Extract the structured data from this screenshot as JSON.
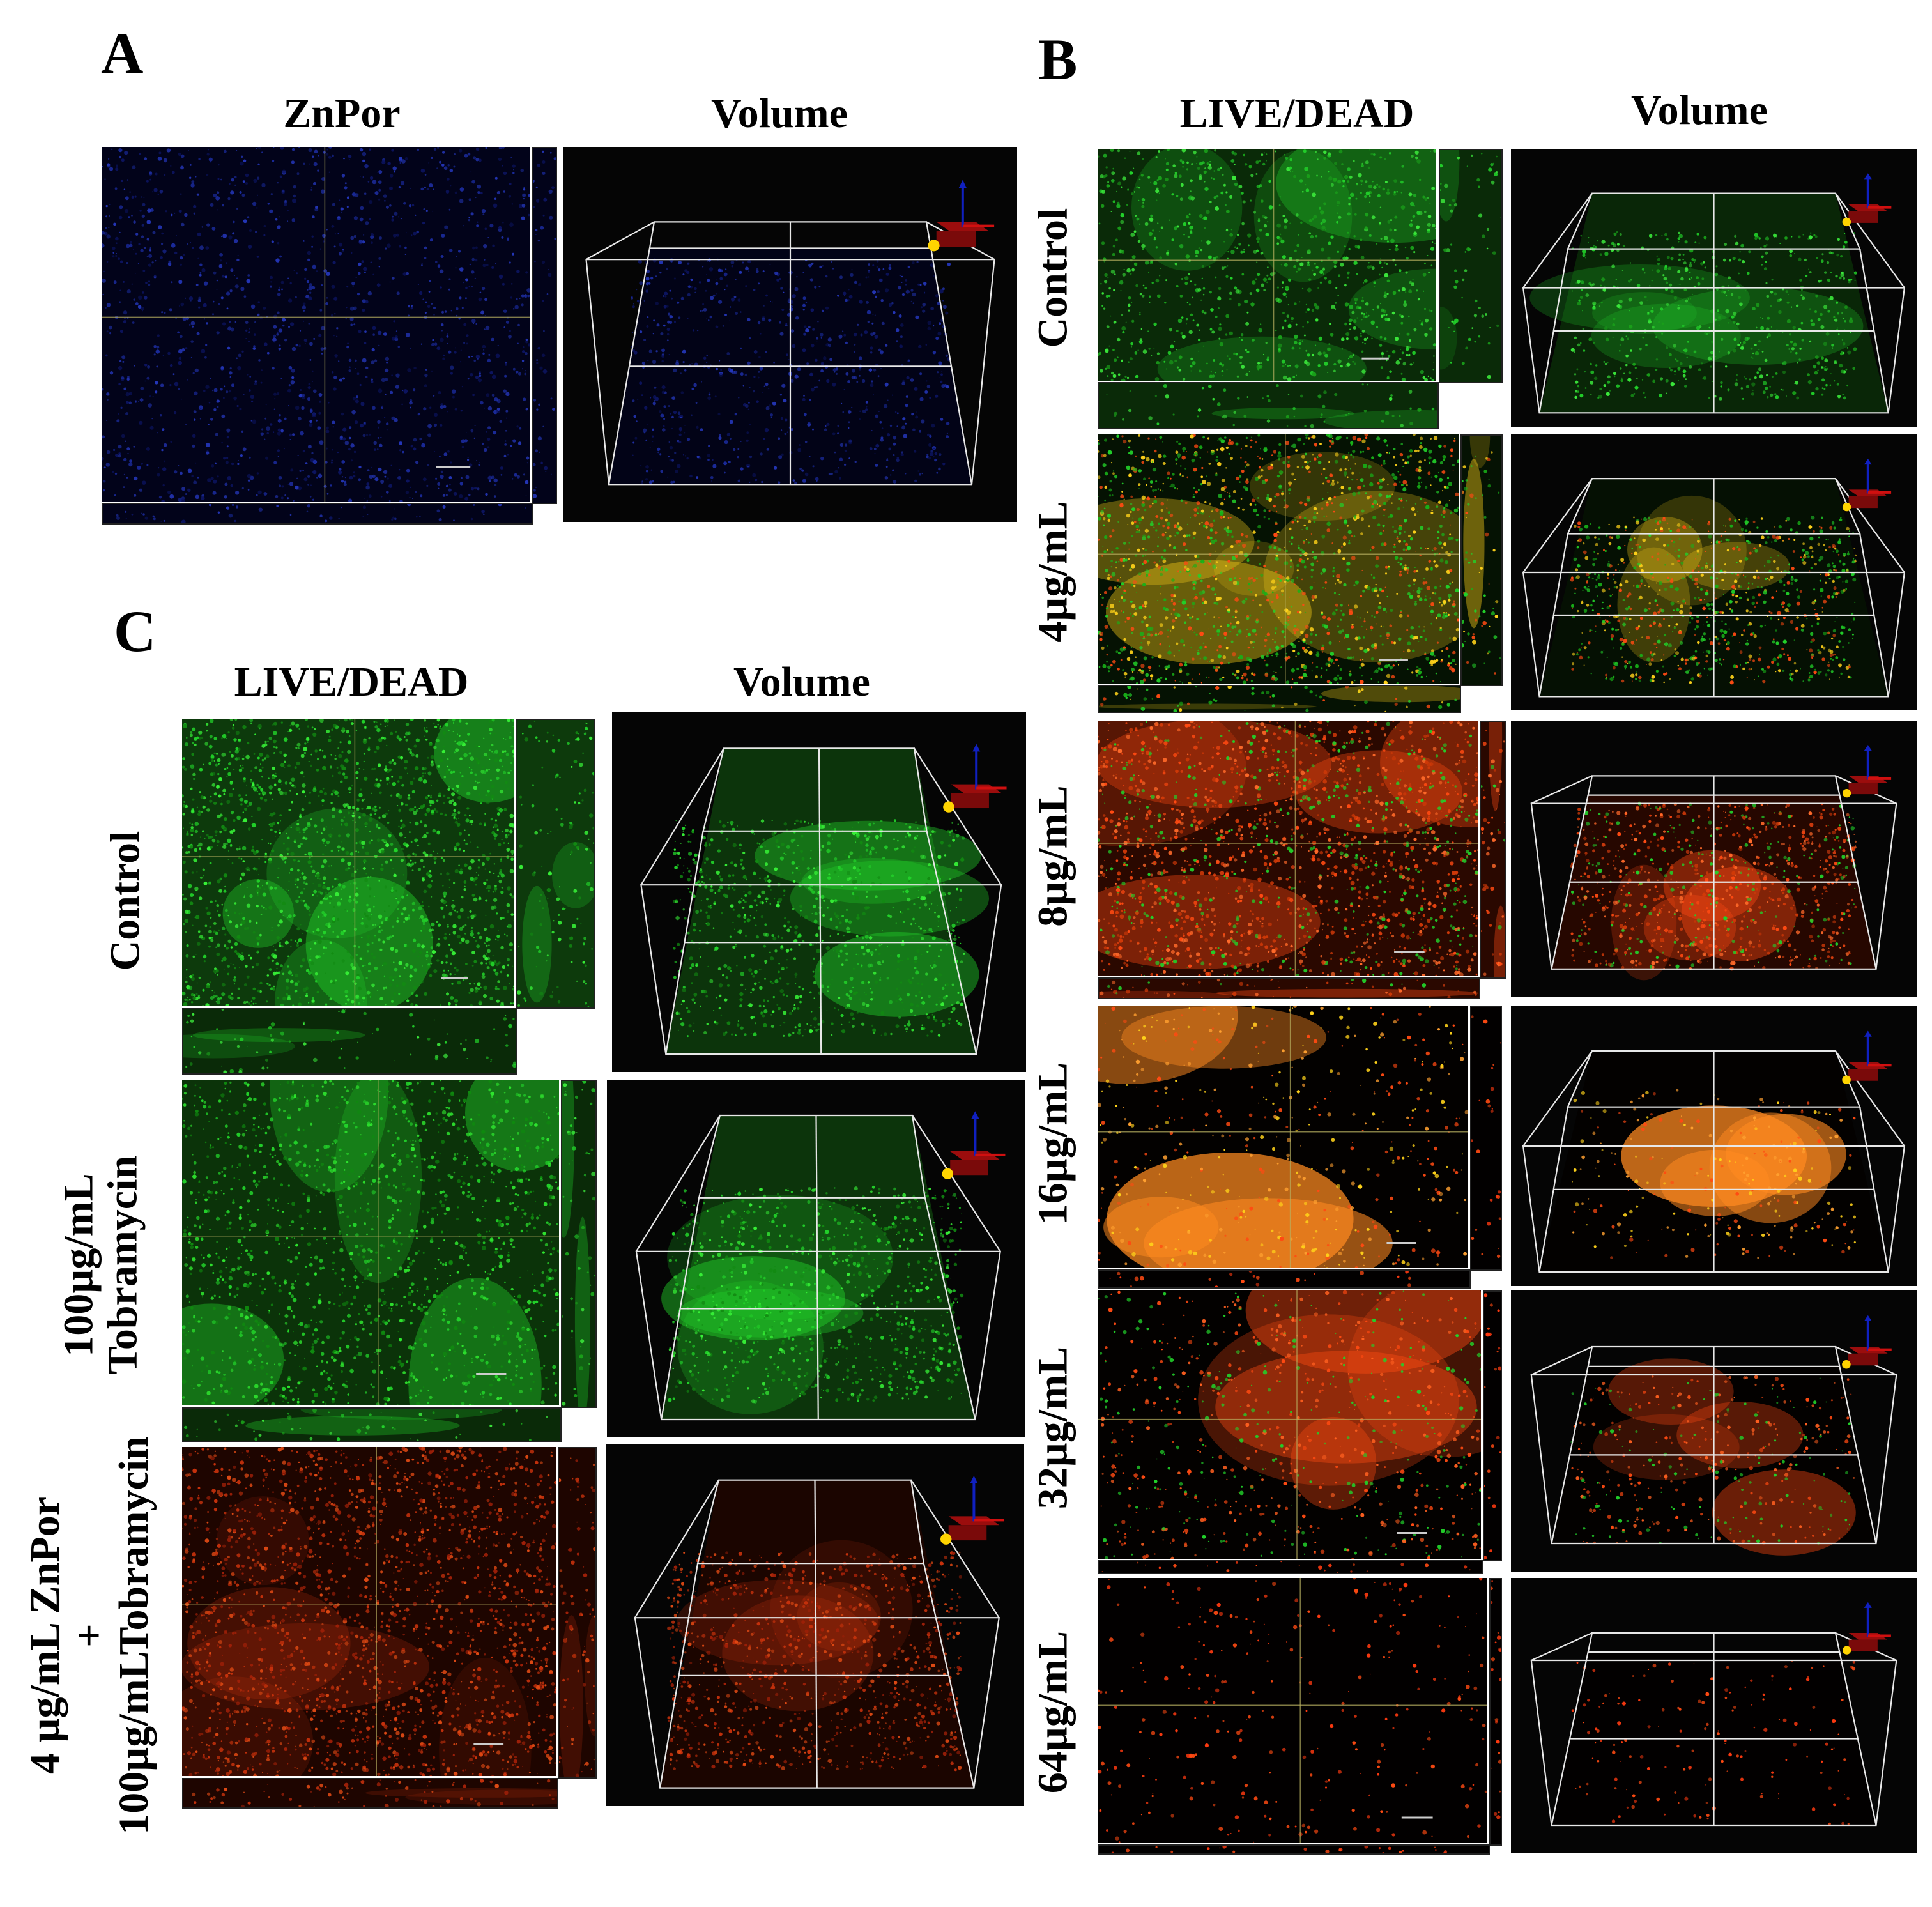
{
  "panels": {
    "A": {
      "letter": "A",
      "headers": [
        "ZnPor",
        "Volume"
      ]
    },
    "B": {
      "letter": "B",
      "headers": [
        "LIVE/DEAD",
        "Volume"
      ],
      "rows": [
        "Control",
        "4µg/mL",
        "8µg/mL",
        "16µg/mL",
        "32µg/mL",
        "64µg/mL"
      ]
    },
    "C": {
      "letter": "C",
      "headers": [
        "LIVE/DEAD",
        "Volume"
      ],
      "rows": [
        {
          "lines": [
            "Control"
          ]
        },
        {
          "lines": [
            "100µg/mL",
            "Tobramycin"
          ]
        },
        {
          "lines": [
            "4 µg/mL ZnPor",
            "+",
            "100µg/mLTobramycin"
          ]
        }
      ]
    }
  },
  "colors": {
    "live": "#22d12a",
    "dead": "#ff4a12",
    "merged": "#ffd21a",
    "znpor": "#1a2a9a",
    "box_lines": "#e8e8e8",
    "axis_base": "#9b0d0d",
    "axis_arrow": "#1020c0",
    "axis_dot": "#ffd400"
  }
}
